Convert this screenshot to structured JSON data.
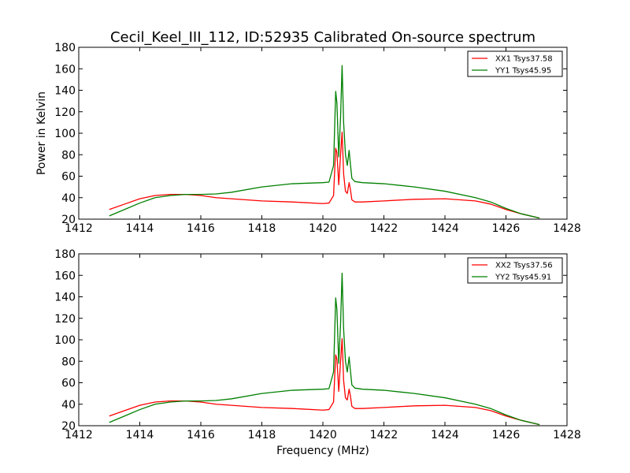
{
  "title": "Cecil_Keel_III_112, ID:52935 Calibrated On-source spectrum",
  "colors": {
    "xx": "#ff0000",
    "yy": "#008000"
  },
  "chart_data": [
    {
      "type": "line",
      "title": "Cecil_Keel_III_112, ID:52935 Calibrated On-source spectrum",
      "xlabel": "",
      "ylabel": "Power in Kelvin",
      "xlim": [
        1412,
        1428
      ],
      "ylim": [
        20,
        180
      ],
      "xticks": [
        1412,
        1414,
        1416,
        1418,
        1420,
        1422,
        1424,
        1426,
        1428
      ],
      "yticks": [
        20,
        40,
        60,
        80,
        100,
        120,
        140,
        160,
        180
      ],
      "grid": false,
      "legend": "top-right",
      "series": [
        {
          "name": "XX1 Tsys37.58",
          "color": "#ff0000",
          "x": [
            1413.0,
            1413.5,
            1414.0,
            1414.5,
            1415.0,
            1415.5,
            1416.0,
            1416.5,
            1417.0,
            1418.0,
            1419.0,
            1420.0,
            1420.2,
            1420.35,
            1420.42,
            1420.46,
            1420.52,
            1420.58,
            1420.63,
            1420.68,
            1420.74,
            1420.8,
            1420.86,
            1420.9,
            1420.95,
            1421.05,
            1421.3,
            1422.0,
            1423.0,
            1424.0,
            1425.0,
            1425.5,
            1426.0,
            1426.5,
            1427.1
          ],
          "y": [
            29,
            34,
            39,
            42,
            43,
            43,
            42,
            40,
            39,
            37,
            36,
            34.5,
            35,
            42,
            86,
            82,
            52,
            80,
            101,
            62,
            46,
            44,
            54,
            48,
            38,
            36,
            36,
            37,
            38.5,
            39,
            37,
            34,
            29,
            25,
            21
          ]
        },
        {
          "name": "YY1 Tsys45.95",
          "color": "#008000",
          "x": [
            1413.0,
            1413.5,
            1414.0,
            1414.5,
            1415.0,
            1415.5,
            1416.0,
            1416.5,
            1417.0,
            1418.0,
            1419.0,
            1420.0,
            1420.2,
            1420.35,
            1420.42,
            1420.46,
            1420.52,
            1420.58,
            1420.63,
            1420.68,
            1420.74,
            1420.8,
            1420.86,
            1420.9,
            1420.95,
            1421.05,
            1421.3,
            1422.0,
            1423.0,
            1424.0,
            1425.0,
            1425.5,
            1426.0,
            1426.5,
            1427.1
          ],
          "y": [
            23,
            29,
            35,
            40,
            42,
            43,
            43,
            43.5,
            45,
            50,
            53,
            54,
            54.5,
            70,
            139,
            128,
            78,
            115,
            163,
            110,
            80,
            70,
            84,
            72,
            58,
            55,
            54,
            53,
            50,
            46,
            40,
            36,
            30,
            25,
            21
          ]
        }
      ]
    },
    {
      "type": "line",
      "title": "",
      "xlabel": "Frequency (MHz)",
      "ylabel": "",
      "xlim": [
        1412,
        1428
      ],
      "ylim": [
        20,
        180
      ],
      "xticks": [
        1412,
        1414,
        1416,
        1418,
        1420,
        1422,
        1424,
        1426,
        1428
      ],
      "yticks": [
        20,
        40,
        60,
        80,
        100,
        120,
        140,
        160,
        180
      ],
      "grid": false,
      "legend": "top-right",
      "series": [
        {
          "name": "XX2 Tsys37.56",
          "color": "#ff0000",
          "x": [
            1413.0,
            1413.5,
            1414.0,
            1414.5,
            1415.0,
            1415.5,
            1416.0,
            1416.5,
            1417.0,
            1418.0,
            1419.0,
            1420.0,
            1420.2,
            1420.35,
            1420.42,
            1420.46,
            1420.52,
            1420.58,
            1420.63,
            1420.68,
            1420.74,
            1420.8,
            1420.86,
            1420.9,
            1420.95,
            1421.05,
            1421.3,
            1422.0,
            1423.0,
            1424.0,
            1425.0,
            1425.5,
            1426.0,
            1426.5,
            1427.1
          ],
          "y": [
            29,
            34,
            39,
            42,
            43,
            43,
            42,
            40,
            39,
            37,
            36,
            34.5,
            35,
            42,
            86,
            82,
            52,
            80,
            101,
            62,
            46,
            44,
            54,
            48,
            38,
            36,
            36,
            37,
            38.5,
            39,
            37,
            34,
            29,
            25,
            21
          ]
        },
        {
          "name": "YY2 Tsys45.91",
          "color": "#008000",
          "x": [
            1413.0,
            1413.5,
            1414.0,
            1414.5,
            1415.0,
            1415.5,
            1416.0,
            1416.5,
            1417.0,
            1418.0,
            1419.0,
            1420.0,
            1420.2,
            1420.35,
            1420.42,
            1420.46,
            1420.52,
            1420.58,
            1420.63,
            1420.68,
            1420.74,
            1420.8,
            1420.86,
            1420.9,
            1420.95,
            1421.05,
            1421.3,
            1422.0,
            1423.0,
            1424.0,
            1425.0,
            1425.5,
            1426.0,
            1426.5,
            1427.1
          ],
          "y": [
            23,
            29,
            35,
            40,
            42,
            43,
            43,
            43.5,
            45,
            50,
            53,
            54,
            54.5,
            70,
            139,
            128,
            78,
            115,
            162,
            110,
            80,
            70,
            84,
            72,
            58,
            55,
            54,
            53,
            50,
            46,
            40,
            36,
            30,
            25,
            21
          ]
        }
      ]
    }
  ]
}
